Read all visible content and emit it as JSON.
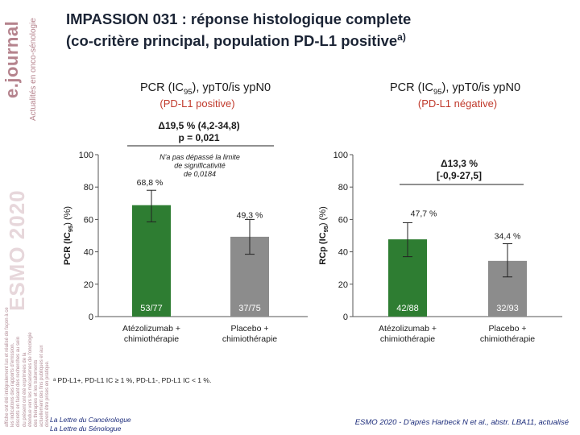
{
  "title_line1": "IMPASSION 031 : réponse histologique complete",
  "title_line2": "(co-critère principal, population PD-L1 positive",
  "title_sup": "a)",
  "sidebar": {
    "logo": "e.journal",
    "logo_sub": "Actualités en onco-sénologie",
    "esmo": "ESMO 2020",
    "disclaimer": [
      "affiche ont été intégralement lus et réalisé de façon à ce",
      "les indications des rapports d'emission.",
      "discrets en faisant des recherches au sein",
      "du présent ont été exprimées de la",
      "étendue vers les mécanismes de l'oncologie",
      "des thérapies et les traitements",
      "actuellement des fins publiques et aux",
      "doivent être prises en pratique."
    ]
  },
  "colors": {
    "atezo": "#2e7d32",
    "placebo": "#8c8c8c",
    "subtitle": "#c0392b",
    "brand": "#b5838d",
    "footer": "#1b2b7a"
  },
  "chart_data": [
    {
      "type": "bar",
      "title": "PCR (IC95), ypT0/is ypN0",
      "title_main": "PCR (IC",
      "title_sub": "95",
      "title_rest": "), ypT0/is ypN0",
      "subtitle": "(PD-L1 positive)",
      "ylabel_main": "PCR (IC",
      "ylabel_sub": "95",
      "ylabel_rest": ")  (%)",
      "ylim": [
        0,
        100
      ],
      "yticks": [
        "0",
        "20",
        "40",
        "60",
        "80",
        "100"
      ],
      "categories": [
        "Atézolizumab +\nchimiothérapie",
        "Placebo +\nchimiothérapie"
      ],
      "category_lines": [
        [
          "Atézolizumab +",
          "chimiothérapie"
        ],
        [
          "Placebo +",
          "chimiothérapie"
        ]
      ],
      "values": [
        68.8,
        49.3
      ],
      "value_labels": [
        "68,8 %",
        "49,3 %"
      ],
      "ci_low": [
        58.5,
        38.5
      ],
      "ci_high": [
        78.0,
        60.0
      ],
      "counts": [
        "53/77",
        "37/75"
      ],
      "difference": "Δ19,5 % (4,2-34,8)",
      "pvalue": "p = 0,021",
      "note_lines": [
        "N'a pas dépassé la limite",
        "de significativité",
        "de 0,0184"
      ]
    },
    {
      "type": "bar",
      "title": "PCR (IC95), ypT0/is ypN0",
      "title_main": "PCR (IC",
      "title_sub": "95",
      "title_rest": "), ypT0/is ypN0",
      "subtitle": "(PD-L1 négative)",
      "ylabel_main": "RCp (IC",
      "ylabel_sub": "95",
      "ylabel_rest": ")  (%)",
      "ylim": [
        0,
        100
      ],
      "yticks": [
        "0",
        "20",
        "40",
        "60",
        "80",
        "100"
      ],
      "categories": [
        "Atézolizumab +\nchimiothérapie",
        "Placebo +\nchimiothérapie"
      ],
      "category_lines": [
        [
          "Atézolizumab +",
          "chimiothérapie"
        ],
        [
          "Placebo +",
          "chimiothérapie"
        ]
      ],
      "values": [
        47.7,
        34.4
      ],
      "value_labels": [
        "47,7 %",
        "34,4 %"
      ],
      "ci_low": [
        37.0,
        24.5
      ],
      "ci_high": [
        58.0,
        45.0
      ],
      "counts": [
        "42/88",
        "32/93"
      ],
      "difference": "Δ13,3 %",
      "difference_ci": "[-0,9-27,5]"
    }
  ],
  "footnote": "ᵃ PD-L1+, PD-L1 IC ≥ 1 %, PD-L1-, PD-L1 IC < 1 %.",
  "footer_left": [
    "La Lettre du Cancérologue",
    "La Lettre du Sénologue"
  ],
  "footer_right": "ESMO 2020 - D'après Harbeck N et al., abstr. LBA11, actualisé"
}
